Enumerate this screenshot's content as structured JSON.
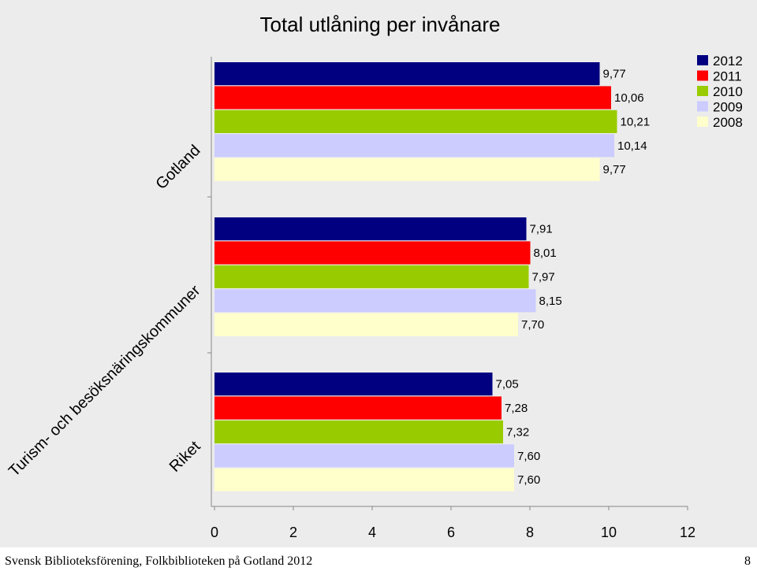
{
  "chart_data": {
    "type": "bar",
    "orientation": "horizontal",
    "title": "Total utlåning per invånare",
    "categories": [
      "Gotland",
      "Turism- och besöksnäringskommuner",
      "Riket"
    ],
    "series": [
      {
        "name": "2012",
        "color": "#000080",
        "values": [
          9.77,
          7.91,
          7.05
        ],
        "labels": [
          "9,77",
          "7,91",
          "7,05"
        ]
      },
      {
        "name": "2011",
        "color": "#ff0000",
        "values": [
          10.06,
          8.01,
          7.28
        ],
        "labels": [
          "10,06",
          "8,01",
          "7,28"
        ]
      },
      {
        "name": "2010",
        "color": "#99cc00",
        "values": [
          10.21,
          7.97,
          7.32
        ],
        "labels": [
          "10,21",
          "7,97",
          "7,32"
        ]
      },
      {
        "name": "2009",
        "color": "#ccccff",
        "values": [
          10.14,
          8.15,
          7.6
        ],
        "labels": [
          "10,14",
          "8,15",
          "7,60"
        ]
      },
      {
        "name": "2008",
        "color": "#ffffcc",
        "values": [
          9.77,
          7.7,
          7.6
        ],
        "labels": [
          "9,77",
          "7,70",
          "7,60"
        ]
      }
    ],
    "xlim": [
      0,
      12
    ],
    "xticks": [
      0,
      2,
      4,
      6,
      8,
      10,
      12
    ],
    "grid": false,
    "legend": "top-right",
    "background": "#ececec"
  },
  "footer": {
    "text": "Svensk Biblioteksförening, Folkbiblioteken på Gotland 2012",
    "page": "8"
  }
}
